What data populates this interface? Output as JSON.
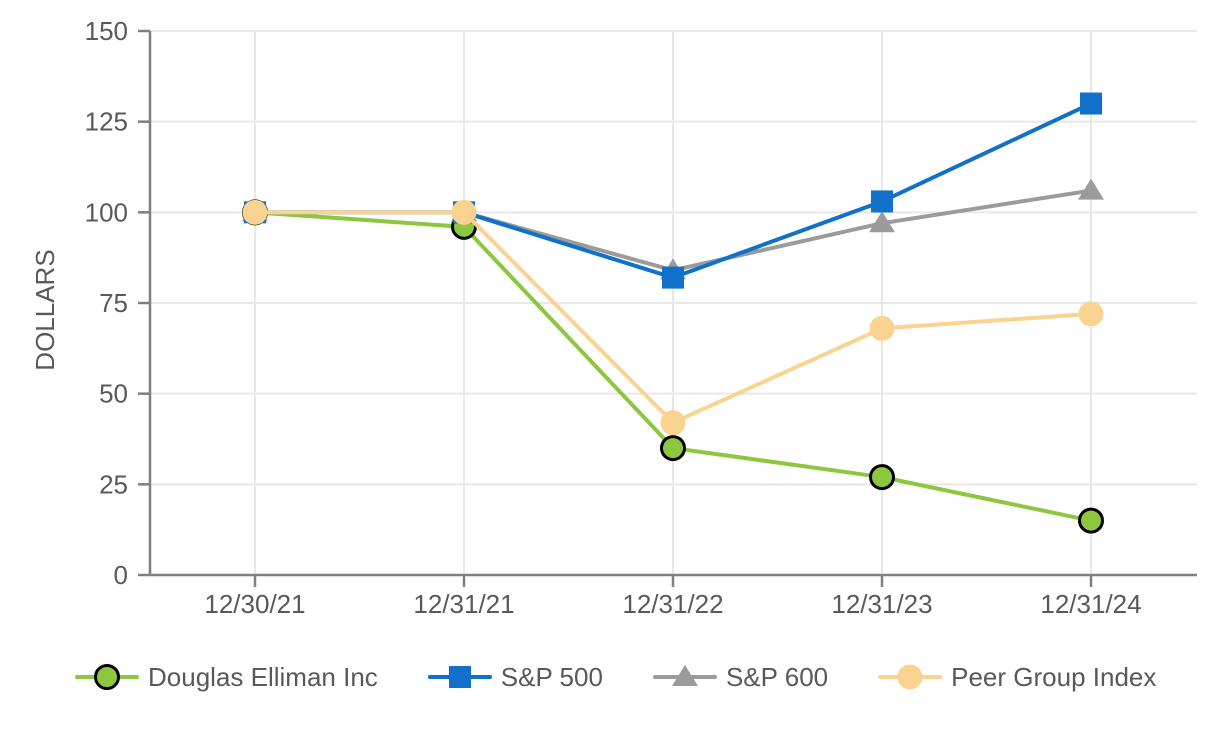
{
  "chart_data": {
    "type": "line",
    "ylabel": "DOLLARS",
    "categories": [
      "12/30/21",
      "12/31/21",
      "12/31/22",
      "12/31/23",
      "12/31/24"
    ],
    "series": [
      {
        "name": "Douglas Elliman Inc",
        "marker": "circle-outlined",
        "color": "#8DC63F",
        "marker_stroke": "#000000",
        "values": [
          100,
          96,
          35,
          27,
          15
        ]
      },
      {
        "name": "S&P 600",
        "marker": "triangle",
        "color": "#9B9B9B",
        "values": [
          100,
          100,
          84,
          97,
          106
        ]
      },
      {
        "name": "S&P 500",
        "marker": "square",
        "color": "#1170CA",
        "values": [
          100,
          100,
          82,
          103,
          130
        ]
      },
      {
        "name": "Peer Group Index",
        "marker": "circle",
        "color": "#FAD390",
        "values": [
          100,
          100,
          42,
          68,
          72
        ]
      }
    ],
    "legend_order": [
      "Douglas Elliman Inc",
      "S&P 500",
      "S&P 600",
      "Peer Group Index"
    ],
    "y_ticks": [
      0,
      25,
      50,
      75,
      100,
      125,
      150
    ],
    "ylim": [
      0,
      150
    ],
    "grid": true,
    "legend_position": "bottom"
  },
  "colors": {
    "background": "#FFFFFF",
    "axis_line": "#7F7F7F",
    "gridline": "#E8E8E8",
    "axis_text": "#595959"
  }
}
